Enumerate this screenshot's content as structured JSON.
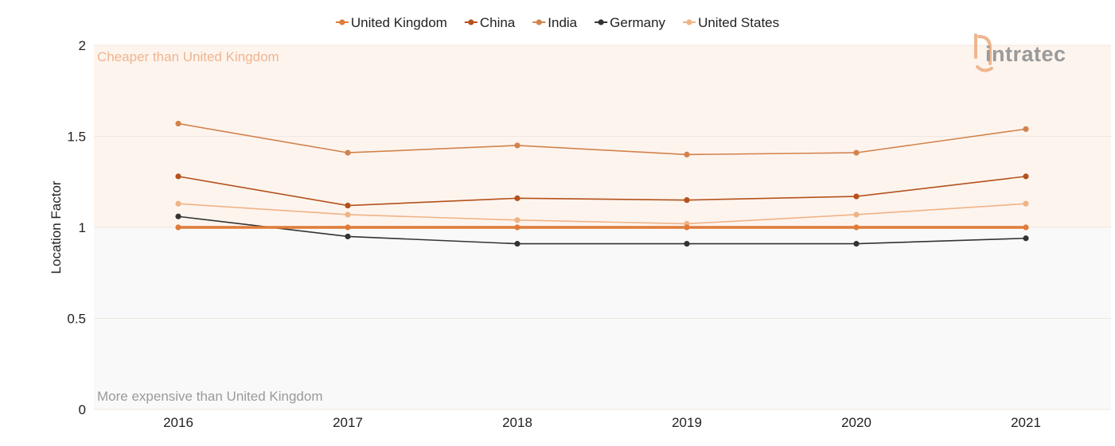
{
  "chart_data": {
    "type": "line",
    "x": [
      "2016",
      "2017",
      "2018",
      "2019",
      "2020",
      "2021"
    ],
    "ylabel": "Location Factor",
    "ylim": [
      0,
      2
    ],
    "yticks": [
      "0",
      "0.5",
      "1",
      "1.5",
      "2"
    ],
    "legend_position": "top",
    "series": [
      {
        "name": "United Kingdom",
        "color": "#e07b39",
        "values": [
          1.0,
          1.0,
          1.0,
          1.0,
          1.0,
          1.0
        ]
      },
      {
        "name": "China",
        "color": "#b5511b",
        "values": [
          1.28,
          1.12,
          1.16,
          1.15,
          1.17,
          1.28
        ]
      },
      {
        "name": "India",
        "color": "#d2834b",
        "values": [
          1.57,
          1.41,
          1.45,
          1.4,
          1.41,
          1.54
        ]
      },
      {
        "name": "Germany",
        "color": "#333333",
        "values": [
          1.06,
          0.95,
          0.91,
          0.91,
          0.91,
          0.94
        ]
      },
      {
        "name": "United States",
        "color": "#f0b386",
        "values": [
          1.13,
          1.07,
          1.04,
          1.02,
          1.07,
          1.13
        ]
      }
    ],
    "regions": {
      "above": {
        "label": "Cheaper than United Kingdom",
        "color": "#fdf4ee",
        "text_color": "#efb58f"
      },
      "below": {
        "label": "More expensive than United Kingdom",
        "color": "#f9f9f9",
        "text_color": "#9a9a9a"
      }
    }
  },
  "logo": {
    "text": "intratec",
    "color": "#9a9a9a",
    "accent": "#efb58f"
  }
}
